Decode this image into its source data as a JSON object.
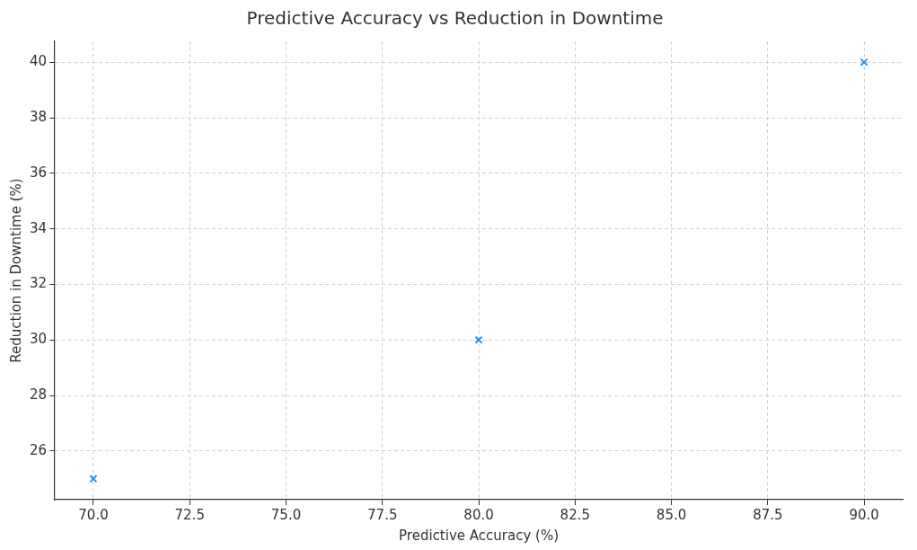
{
  "chart_data": {
    "type": "scatter",
    "title": "Predictive Accuracy vs Reduction in Downtime",
    "xlabel": "Predictive Accuracy (%)",
    "ylabel": "Reduction in Downtime (%)",
    "x": [
      70,
      80,
      90
    ],
    "values": [
      25,
      30,
      40
    ],
    "color": "#2196f3",
    "marker": "cross",
    "xlim": [
      69,
      91
    ],
    "xticks": [
      {
        "value": 70,
        "label": "70.0"
      },
      {
        "value": 72.5,
        "label": "72.5"
      },
      {
        "value": 75,
        "label": "75.0"
      },
      {
        "value": 77.5,
        "label": "77.5"
      },
      {
        "value": 80,
        "label": "80.0"
      },
      {
        "value": 82.5,
        "label": "82.5"
      },
      {
        "value": 85,
        "label": "85.0"
      },
      {
        "value": 87.5,
        "label": "87.5"
      },
      {
        "value": 90,
        "label": "90.0"
      }
    ],
    "ylim": [
      24.25,
      40.75
    ],
    "yticks": [
      26,
      28,
      30,
      32,
      34,
      36,
      38,
      40
    ],
    "grid": true
  }
}
